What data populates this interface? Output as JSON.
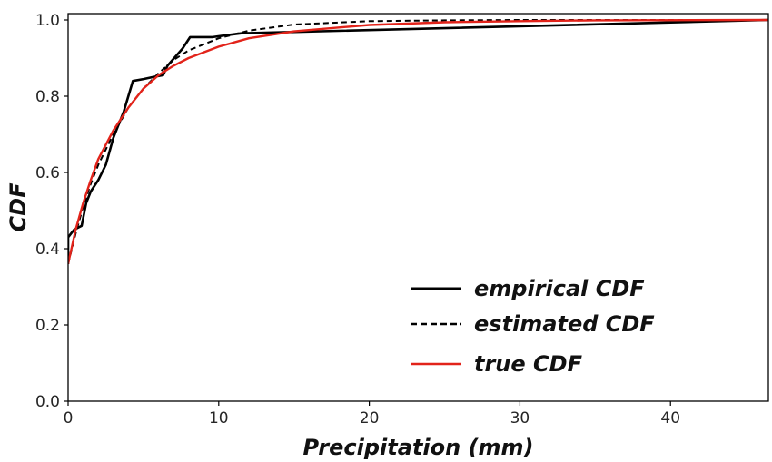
{
  "chart_data": {
    "type": "line",
    "title": "",
    "xlabel": "Precipitation (mm)",
    "ylabel": "CDF",
    "xlim": [
      0,
      46.5
    ],
    "ylim": [
      0,
      1.0
    ],
    "xticks": [
      0,
      10,
      20,
      30,
      40
    ],
    "yticks": [
      0.0,
      0.2,
      0.4,
      0.6,
      0.8,
      1.0
    ],
    "xtick_labels": [
      "0",
      "10",
      "20",
      "30",
      "40"
    ],
    "ytick_labels": [
      "0.0",
      "0.2",
      "0.4",
      "0.6",
      "0.8",
      "1.0"
    ],
    "grid": false,
    "legend_position": "lower-right",
    "series": [
      {
        "name": "empirical CDF",
        "color": "#000000",
        "style": "solid",
        "x": [
          0,
          0,
          0.4,
          0.9,
          1.2,
          1.5,
          2.0,
          2.5,
          3.0,
          3.7,
          4.3,
          5.0,
          5.6,
          6.3,
          6.6,
          7.6,
          8.1,
          8.8,
          9.6,
          10.5,
          11.5,
          46.5
        ],
        "y": [
          0.36,
          0.43,
          0.45,
          0.46,
          0.52,
          0.55,
          0.58,
          0.62,
          0.69,
          0.76,
          0.84,
          0.845,
          0.85,
          0.855,
          0.88,
          0.925,
          0.955,
          0.955,
          0.955,
          0.96,
          0.965,
          1.0
        ]
      },
      {
        "name": "estimated CDF",
        "color": "#000000",
        "style": "dashed",
        "x": [
          0,
          0.5,
          1,
          1.5,
          2,
          3,
          4,
          5,
          6,
          7,
          8,
          10,
          12,
          15,
          20,
          25,
          30,
          46.5
        ],
        "y": [
          0.36,
          0.44,
          0.51,
          0.57,
          0.62,
          0.7,
          0.77,
          0.82,
          0.86,
          0.895,
          0.92,
          0.952,
          0.972,
          0.988,
          0.997,
          0.999,
          1.0,
          1.0
        ]
      },
      {
        "name": "true CDF",
        "color": "#e2231a",
        "style": "solid",
        "x": [
          0,
          0.5,
          1,
          1.5,
          2,
          3,
          4,
          5,
          6,
          7,
          8,
          10,
          12,
          15,
          20,
          25,
          30,
          35,
          46.5
        ],
        "y": [
          0.36,
          0.45,
          0.52,
          0.58,
          0.635,
          0.71,
          0.77,
          0.82,
          0.855,
          0.88,
          0.9,
          0.93,
          0.952,
          0.97,
          0.987,
          0.994,
          0.997,
          0.999,
          1.0
        ]
      }
    ]
  }
}
